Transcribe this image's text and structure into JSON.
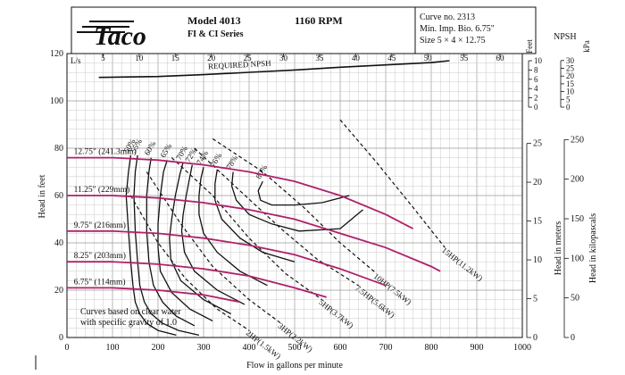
{
  "header": {
    "brand": "Taco",
    "model": "Model 4013",
    "series": "FI & CI Series",
    "rpm": "1160 RPM",
    "curve_no": "Curve no. 2313",
    "min_imp": "Min. Imp. Bio. 6.75\"",
    "size": "Size 5 × 4 × 12.75"
  },
  "chart_data": {
    "type": "line",
    "xlabel": "Flow in gallons per minute",
    "ylabel": "Head in feet",
    "ylabel_right_m": "Head in meters",
    "ylabel_right_kpa": "Head in kilopascals",
    "npsh_label": "NPSH",
    "npsh_feet_label": "Feet",
    "npsh_kpa_label": "kPa",
    "ls_label": "L/s",
    "xlim": [
      0,
      1000
    ],
    "ylim": [
      0,
      120
    ],
    "x_ticks": [
      0,
      100,
      200,
      300,
      400,
      500,
      600,
      700,
      800,
      900,
      1000
    ],
    "y_ticks": [
      0,
      20,
      40,
      60,
      80,
      100,
      120
    ],
    "ls_ticks": [
      5,
      10,
      15,
      20,
      25,
      30,
      35,
      40,
      45,
      50,
      55,
      60
    ],
    "meters_ticks": [
      0,
      5,
      10,
      15,
      20,
      25
    ],
    "kpa_ticks": [
      0,
      50,
      100,
      150,
      200,
      250
    ],
    "npsh_feet_ticks": [
      0,
      2,
      4,
      6,
      8,
      10
    ],
    "npsh_kpa_ticks": [
      0,
      5,
      10,
      15,
      20,
      25,
      30
    ],
    "note": [
      "Curves based on clear water",
      "with specific gravity of 1.0"
    ],
    "required_npsh_label": "REQUIRED NPSH",
    "required_npsh": {
      "x": [
        70,
        200,
        300,
        400,
        500,
        600,
        700,
        800,
        840
      ],
      "npsh_ft": [
        6.4,
        6.6,
        7.0,
        7.5,
        8.0,
        8.6,
        9.1,
        9.6,
        10.0
      ]
    },
    "impellers": [
      {
        "label": "12.75\" (241.3mm)",
        "x": [
          0,
          100,
          200,
          300,
          400,
          500,
          600,
          700,
          760
        ],
        "y": [
          76,
          76,
          75,
          73,
          70,
          66,
          60,
          52,
          46
        ]
      },
      {
        "label": "11.25\" (229mm)",
        "x": [
          0,
          100,
          200,
          300,
          400,
          500,
          600,
          700,
          800,
          820
        ],
        "y": [
          60,
          60,
          59,
          57,
          54,
          50,
          44,
          38,
          30,
          28
        ]
      },
      {
        "label": "9.75\" (216mm)",
        "x": [
          0,
          100,
          200,
          300,
          400,
          500,
          600,
          700
        ],
        "y": [
          45,
          45,
          44,
          42,
          39,
          35,
          29,
          22
        ]
      },
      {
        "label": "8.25\" (203mm)",
        "x": [
          0,
          100,
          200,
          300,
          400,
          500,
          570
        ],
        "y": [
          32,
          32,
          31,
          29,
          26,
          21,
          17
        ]
      },
      {
        "label": "6.75\" (114mm)",
        "x": [
          0,
          100,
          200,
          300,
          380
        ],
        "y": [
          21,
          21,
          20,
          18,
          15
        ]
      }
    ],
    "efficiency_curves": [
      {
        "label": "50%",
        "x": [
          140,
          135,
          130,
          135,
          140,
          145,
          150,
          160,
          175,
          200,
          240
        ],
        "y": [
          77,
          70,
          60,
          45,
          32,
          22,
          15,
          10,
          6,
          3,
          1
        ]
      },
      {
        "label": "55%",
        "x": [
          155,
          150,
          147,
          150,
          155,
          160,
          170,
          185,
          210,
          245,
          290
        ],
        "y": [
          77,
          70,
          60,
          45,
          32,
          22,
          15,
          10,
          6,
          3,
          1
        ]
      },
      {
        "label": "60%",
        "x": [
          185,
          180,
          175,
          175,
          180,
          190,
          210,
          240,
          280
        ],
        "y": [
          76,
          70,
          60,
          45,
          32,
          22,
          15,
          9,
          5
        ]
      },
      {
        "label": "65%",
        "x": [
          220,
          212,
          205,
          200,
          200,
          205,
          230,
          270,
          320
        ],
        "y": [
          75,
          70,
          60,
          48,
          38,
          28,
          19,
          12,
          7
        ]
      },
      {
        "label": "70%",
        "x": [
          255,
          248,
          238,
          230,
          225,
          228,
          250,
          300,
          360
        ],
        "y": [
          74,
          69,
          60,
          50,
          42,
          33,
          24,
          16,
          10
        ]
      },
      {
        "label": "72%",
        "x": [
          275,
          270,
          262,
          255,
          252,
          258,
          280,
          330,
          390
        ],
        "y": [
          73,
          68,
          60,
          52,
          45,
          36,
          28,
          20,
          14
        ]
      },
      {
        "label": "74%",
        "x": [
          300,
          294,
          290,
          290,
          300,
          330,
          380,
          440
        ],
        "y": [
          72,
          67,
          60,
          52,
          44,
          36,
          28,
          22
        ]
      },
      {
        "label": "76%",
        "x": [
          330,
          325,
          325,
          340,
          380,
          430,
          500
        ],
        "y": [
          71,
          65,
          58,
          50,
          42,
          36,
          32
        ]
      },
      {
        "label": "78%",
        "x": [
          365,
          362,
          372,
          400,
          450,
          510,
          600,
          650
        ],
        "y": [
          70,
          64,
          58,
          52,
          48,
          45,
          46,
          54
        ]
      },
      {
        "label": "80%",
        "x": [
          430,
          420,
          425,
          450,
          500,
          560,
          620
        ],
        "y": [
          66,
          62,
          58,
          56,
          56,
          57,
          60
        ]
      }
    ],
    "power_curves": [
      {
        "label": "2HP(1.5kW)",
        "x": [
          140,
          200,
          260,
          330,
          400
        ],
        "y": [
          60,
          40,
          25,
          12,
          3
        ]
      },
      {
        "label": "3HP(2.2kW)",
        "x": [
          175,
          250,
          320,
          400,
          470
        ],
        "y": [
          70,
          48,
          30,
          16,
          6
        ]
      },
      {
        "label": "5HP(3.7kW)",
        "x": [
          230,
          320,
          400,
          480,
          560
        ],
        "y": [
          76,
          60,
          42,
          27,
          16
        ]
      },
      {
        "label": "7.5HP(5.6kW)",
        "x": [
          280,
          380,
          470,
          550,
          640
        ],
        "y": [
          80,
          62,
          46,
          33,
          22
        ]
      },
      {
        "label": "10HP(7.5kW)",
        "x": [
          320,
          430,
          520,
          600,
          680
        ],
        "y": [
          84,
          70,
          55,
          40,
          27
        ]
      },
      {
        "label": "15HP(11.2kW)",
        "x": [
          600,
          680,
          760,
          830
        ],
        "y": [
          92,
          74,
          55,
          38
        ]
      }
    ]
  }
}
